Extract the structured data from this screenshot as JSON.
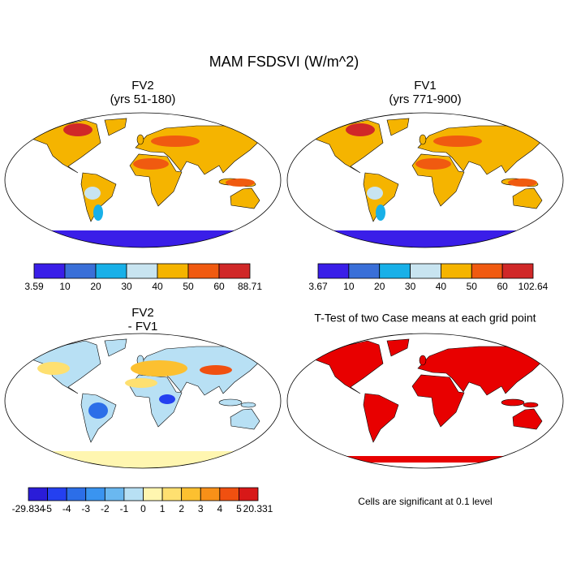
{
  "title": "MAM FSDSVI (W/m^2)",
  "panels": [
    {
      "title": [
        "FV2",
        "(yrs 51-180)"
      ],
      "colorbar": {
        "labels": [
          "3.59",
          "10",
          "20",
          "30",
          "40",
          "50",
          "60",
          "88.71"
        ],
        "colors": [
          "#3a1ee8",
          "#3a6fd8",
          "#18b0e8",
          "#c8e4f0",
          "#f5b400",
          "#f05a10",
          "#d02828"
        ]
      }
    },
    {
      "title": [
        "FV1",
        "(yrs 771-900)"
      ],
      "colorbar": {
        "labels": [
          "3.67",
          "10",
          "20",
          "30",
          "40",
          "50",
          "60",
          "102.64"
        ],
        "colors": [
          "#3a1ee8",
          "#3a6fd8",
          "#18b0e8",
          "#c8e4f0",
          "#f5b400",
          "#f05a10",
          "#d02828"
        ]
      }
    },
    {
      "title": [
        "FV2",
        "- FV1"
      ],
      "colorbar": {
        "labels": [
          "-29.834",
          "-5",
          "-4",
          "-3",
          "-2",
          "-1",
          "0",
          "1",
          "2",
          "3",
          "4",
          "5",
          "20.331"
        ],
        "colors": [
          "#2a1cd8",
          "#2440f0",
          "#2c6ee8",
          "#3a94f0",
          "#6ab8f0",
          "#b8e0f4",
          "#fff6b0",
          "#fee070",
          "#fcc030",
          "#f89018",
          "#f05010",
          "#d81818"
        ]
      }
    },
    {
      "title": [
        "T-Test of two Case means at each grid point"
      ],
      "note": "Cells are significant at 0.1 level"
    }
  ]
}
